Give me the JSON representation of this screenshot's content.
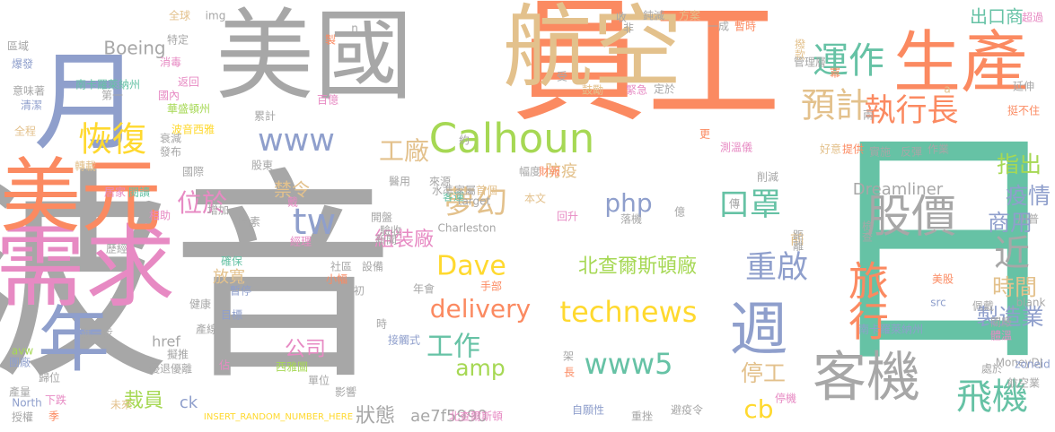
{
  "palette": {
    "grey": "#a7a7a7",
    "blue": "#8f9fcc",
    "orange": "#fb8a61",
    "tan": "#e3c18c",
    "green": "#66c2a5",
    "lime": "#a6d854",
    "yellow": "#ffd92f",
    "pink": "#e78ac3"
  },
  "words": [
    {
      "text": "波音",
      "color": "#a7a7a7"
    },
    {
      "text": "員工",
      "color": "#fb8a61"
    },
    {
      "text": "日",
      "color": "#66c2a5"
    },
    {
      "text": "美國",
      "color": "#a7a7a7"
    },
    {
      "text": "航空",
      "color": "#e3c18c"
    },
    {
      "text": "月",
      "color": "#8f9fcc"
    },
    {
      "text": "需求",
      "color": "#e78ac3"
    },
    {
      "text": "美元",
      "color": "#fb8a61"
    },
    {
      "text": "年",
      "color": "#8f9fcc"
    },
    {
      "text": "生產",
      "color": "#fb8a61"
    },
    {
      "text": "客機",
      "color": "#a7a7a7"
    },
    {
      "text": "週",
      "color": "#8f9fcc"
    },
    {
      "text": "Calhoun",
      "color": "#a6d854"
    },
    {
      "text": "恢復",
      "color": "#ffd92f"
    },
    {
      "text": "運作",
      "color": "#66c2a5"
    },
    {
      "text": "預計",
      "color": "#e3c18c"
    },
    {
      "text": "執行長",
      "color": "#fb8a61"
    },
    {
      "text": "股價",
      "color": "#a7a7a7"
    },
    {
      "text": "旅行",
      "color": "#fb8a61"
    },
    {
      "text": "飛機",
      "color": "#66c2a5"
    },
    {
      "text": "近",
      "color": "#a7a7a7"
    },
    {
      "text": "重啟",
      "color": "#8f9fcc"
    },
    {
      "text": "technews",
      "color": "#ffd92f"
    },
    {
      "text": "www5",
      "color": "#66c2a5"
    },
    {
      "text": "www",
      "color": "#8f9fcc"
    },
    {
      "text": "夢幻",
      "color": "#e3c18c"
    },
    {
      "text": "口罩",
      "color": "#66c2a5"
    },
    {
      "text": "tw",
      "color": "#8f9fcc"
    },
    {
      "text": "Dave",
      "color": "#ffd92f"
    },
    {
      "text": "delivery",
      "color": "#fb8a61"
    },
    {
      "text": "工作",
      "color": "#66c2a5"
    },
    {
      "text": "amp",
      "color": "#a6d854"
    },
    {
      "text": "php",
      "color": "#8f9fcc"
    },
    {
      "text": "cb",
      "color": "#ffd92f"
    },
    {
      "text": "位於",
      "color": "#e78ac3"
    },
    {
      "text": "工廠",
      "color": "#e3c18c"
    },
    {
      "text": "指出",
      "color": "#a6d854"
    },
    {
      "text": "疫情",
      "color": "#8f9fcc"
    },
    {
      "text": "商用",
      "color": "#8f9fcc"
    },
    {
      "text": "時間",
      "color": "#e3c18c"
    },
    {
      "text": "製造業",
      "color": "#8f9fcc"
    },
    {
      "text": "出口商",
      "color": "#66c2a5"
    },
    {
      "text": "Dreamliner",
      "color": "#a7a7a7"
    },
    {
      "text": "北查爾斯頓廠",
      "color": "#a6d854"
    },
    {
      "text": "組裝廠",
      "color": "#e78ac3"
    },
    {
      "text": "公司",
      "color": "#e78ac3"
    },
    {
      "text": "停工",
      "color": "#e3c18c"
    },
    {
      "text": "裁員",
      "color": "#a6d854"
    },
    {
      "text": "狀態",
      "color": "#a7a7a7"
    },
    {
      "text": "ae7f5990",
      "color": "#a7a7a7"
    },
    {
      "text": "放寬",
      "color": "#e3c18c"
    },
    {
      "text": "Boeing",
      "color": "#a7a7a7"
    },
    {
      "text": "禁令",
      "color": "#e3c18c"
    },
    {
      "text": "防疫",
      "color": "#e3c18c"
    },
    {
      "text": "ck",
      "color": "#8f9fcc"
    },
    {
      "text": "href",
      "color": "#a7a7a7"
    },
    {
      "text": "前",
      "color": "#e3c18c"
    },
    {
      "text": "南卡羅萊納州",
      "color": "#66c2a5"
    },
    {
      "text": "南卡羅萊納州",
      "color": "#8f9fcc"
    },
    {
      "text": "INSERT_RANDOM_NUMBER_HERE",
      "color": "#ffd92f"
    },
    {
      "text": "Charleston",
      "color": "#a7a7a7"
    },
    {
      "text": "MoneyDJ",
      "color": "#a7a7a7"
    },
    {
      "text": "_blank",
      "color": "#a7a7a7"
    },
    {
      "text": "zoneid",
      "color": "#8f9fcc"
    },
    {
      "text": "航空業",
      "color": "#a7a7a7"
    },
    {
      "text": "target",
      "color": "#a7a7a7"
    },
    {
      "text": "img",
      "color": "#a7a7a7"
    },
    {
      "text": "src",
      "color": "#8f9fcc"
    },
    {
      "text": "avw",
      "color": "#a6d854"
    },
    {
      "text": "North",
      "color": "#8f9fcc"
    },
    {
      "text": "國際",
      "color": "#a7a7a7"
    },
    {
      "text": "醫用",
      "color": "#a7a7a7"
    },
    {
      "text": "來源",
      "color": "#a7a7a7"
    },
    {
      "text": "幅度",
      "color": "#a7a7a7"
    },
    {
      "text": "財報",
      "color": "#fb8a61"
    },
    {
      "text": "客運",
      "color": "#66c2a5"
    },
    {
      "text": "水準",
      "color": "#a7a7a7"
    },
    {
      "text": "家屬",
      "color": "#a7a7a7"
    },
    {
      "text": "首個",
      "color": "#e3c18c"
    },
    {
      "text": "開盤",
      "color": "#a7a7a7"
    },
    {
      "text": "驗收",
      "color": "#a7a7a7"
    },
    {
      "text": "新聞",
      "color": "#a7a7a7"
    },
    {
      "text": "社區",
      "color": "#a7a7a7"
    },
    {
      "text": "設備",
      "color": "#a7a7a7"
    },
    {
      "text": "年會",
      "color": "#a7a7a7"
    },
    {
      "text": "手部",
      "color": "#fb8a61"
    },
    {
      "text": "接觸式",
      "color": "#8f9fcc"
    },
    {
      "text": "自願性",
      "color": "#8f9fcc"
    },
    {
      "text": "避疫令",
      "color": "#a7a7a7"
    },
    {
      "text": "重挫",
      "color": "#a7a7a7"
    },
    {
      "text": "北查爾斯頓",
      "color": "#e78ac3"
    },
    {
      "text": "影響",
      "color": "#a7a7a7"
    },
    {
      "text": "停機",
      "color": "#e78ac3"
    },
    {
      "text": "國內",
      "color": "#e78ac3"
    },
    {
      "text": "華盛頓州",
      "color": "#a6d854"
    },
    {
      "text": "波音西雅",
      "color": "#ffd92f"
    },
    {
      "text": "衰減",
      "color": "#a7a7a7"
    },
    {
      "text": "返回",
      "color": "#e78ac3"
    },
    {
      "text": "百億",
      "color": "#e78ac3"
    },
    {
      "text": "累計",
      "color": "#a7a7a7"
    },
    {
      "text": "發布",
      "color": "#a7a7a7"
    },
    {
      "text": "股東",
      "color": "#a7a7a7"
    },
    {
      "text": "全球",
      "color": "#e3c18c"
    },
    {
      "text": "特定",
      "color": "#a7a7a7"
    },
    {
      "text": "消毒",
      "color": "#e78ac3"
    },
    {
      "text": "區域",
      "color": "#a7a7a7"
    },
    {
      "text": "爆發",
      "color": "#8f9fcc"
    },
    {
      "text": "意味著",
      "color": "#a7a7a7"
    },
    {
      "text": "第一",
      "color": "#a7a7a7"
    },
    {
      "text": "清潔",
      "color": "#8f9fcc"
    },
    {
      "text": "全程",
      "color": "#e3c18c"
    },
    {
      "text": "轉載",
      "color": "#e3c18c"
    },
    {
      "text": "閱讀",
      "color": "#66c2a5"
    },
    {
      "text": "居家",
      "color": "#e78ac3"
    },
    {
      "text": "相助",
      "color": "#e78ac3"
    },
    {
      "text": "增加",
      "color": "#a7a7a7"
    },
    {
      "text": "因素",
      "color": "#a7a7a7"
    },
    {
      "text": "歷經",
      "color": "#a7a7a7"
    },
    {
      "text": "經理",
      "color": "#e78ac3"
    },
    {
      "text": "確保",
      "color": "#66c2a5"
    },
    {
      "text": "暫停",
      "color": "#8f9fcc"
    },
    {
      "text": "健康",
      "color": "#a7a7a7"
    },
    {
      "text": "進一步",
      "color": "#a7a7a7"
    },
    {
      "text": "產線",
      "color": "#a7a7a7"
    },
    {
      "text": "擬推",
      "color": "#a7a7a7"
    },
    {
      "text": "優退優離",
      "color": "#a7a7a7"
    },
    {
      "text": "歸位",
      "color": "#a7a7a7"
    },
    {
      "text": "團廠",
      "color": "#8f9fcc"
    },
    {
      "text": "產量",
      "color": "#a7a7a7"
    },
    {
      "text": "授權",
      "color": "#a7a7a7"
    },
    {
      "text": "下跌",
      "color": "#e78ac3"
    },
    {
      "text": "未來",
      "color": "#e3c18c"
    },
    {
      "text": "季",
      "color": "#fb8a61"
    },
    {
      "text": "佔",
      "color": "#e78ac3"
    },
    {
      "text": "目標",
      "color": "#8f9fcc"
    },
    {
      "text": "西雅圖",
      "color": "#a6d854"
    },
    {
      "text": "單位",
      "color": "#a7a7a7"
    },
    {
      "text": "時",
      "color": "#a7a7a7"
    },
    {
      "text": "小幅",
      "color": "#fb8a61"
    },
    {
      "text": "初",
      "color": "#a7a7a7"
    },
    {
      "text": "架",
      "color": "#a7a7a7"
    },
    {
      "text": "長",
      "color": "#fb8a61"
    },
    {
      "text": "本文",
      "color": "#e3c18c"
    },
    {
      "text": "回升",
      "color": "#e78ac3"
    },
    {
      "text": "落機",
      "color": "#a7a7a7"
    },
    {
      "text": "億",
      "color": "#a7a7a7"
    },
    {
      "text": "傳",
      "color": "#a7a7a7"
    },
    {
      "text": "削減",
      "color": "#a7a7a7"
    },
    {
      "text": "距離",
      "color": "#a7a7a7"
    },
    {
      "text": "檢查",
      "color": "#a7a7a7"
    },
    {
      "text": "川普",
      "color": "#a7a7a7"
    },
    {
      "text": "美股",
      "color": "#fb8a61"
    },
    {
      "text": "佩戴",
      "color": "#a7a7a7"
    },
    {
      "text": "體溫",
      "color": "#e78ac3"
    },
    {
      "text": "關廠",
      "color": "#a7a7a7"
    },
    {
      "text": "處於",
      "color": "#a7a7a7"
    },
    {
      "text": "鈍減",
      "color": "#a7a7a7"
    },
    {
      "text": "收",
      "color": "#a7a7a7"
    },
    {
      "text": "非",
      "color": "#a7a7a7"
    },
    {
      "text": "方案",
      "color": "#e3c18c"
    },
    {
      "text": "暫時",
      "color": "#fb8a61"
    },
    {
      "text": "一成",
      "color": "#a7a7a7"
    },
    {
      "text": "撥款",
      "color": "#e3c18c"
    },
    {
      "text": "管理層",
      "color": "#a7a7a7"
    },
    {
      "text": "冪",
      "color": "#fb8a61"
    },
    {
      "text": "延伸",
      "color": "#a7a7a7"
    },
    {
      "text": "挺不住",
      "color": "#fb8a61"
    },
    {
      "text": "兩",
      "color": "#a7a7a7"
    },
    {
      "text": "好意",
      "color": "#e3c18c"
    },
    {
      "text": "提供",
      "color": "#fb8a61"
    },
    {
      "text": "實施",
      "color": "#a7a7a7"
    },
    {
      "text": "反彈",
      "color": "#a7a7a7"
    },
    {
      "text": "作業",
      "color": "#a7a7a7"
    },
    {
      "text": "測溫儀",
      "color": "#e78ac3"
    },
    {
      "text": "更",
      "color": "#fb8a61"
    },
    {
      "text": "受",
      "color": "#a7a7a7"
    },
    {
      "text": "鼓勵",
      "color": "#e3c18c"
    },
    {
      "text": "緊急",
      "color": "#e78ac3"
    },
    {
      "text": "定於",
      "color": "#a7a7a7"
    },
    {
      "text": "約",
      "color": "#a7a7a7"
    },
    {
      "text": "超過",
      "color": "#e78ac3"
    },
    {
      "text": "a",
      "color": "#e3c18c"
    },
    {
      "text": "n",
      "color": "#a7a7a7"
    },
    {
      "text": "製",
      "color": "#fb8a61"
    },
    {
      "text": "戴",
      "color": "#e78ac3"
    }
  ]
}
